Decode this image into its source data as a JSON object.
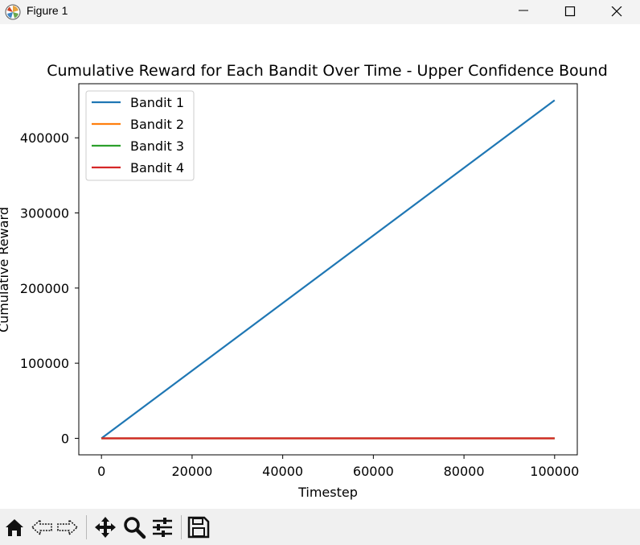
{
  "window": {
    "title": "Figure 1",
    "buttons": [
      "minimize",
      "maximize",
      "close"
    ]
  },
  "toolbar": {
    "icons": [
      "home-icon",
      "back-icon",
      "forward-icon",
      "pan-icon",
      "zoom-icon",
      "configure-icon",
      "save-icon"
    ]
  },
  "chart_data": {
    "type": "line",
    "title": "Cumulative Reward for Each Bandit Over Time - Upper Confidence Bound",
    "xlabel": "Timestep",
    "ylabel": "Cumulative Reward",
    "xlim": [
      -5000,
      105000
    ],
    "ylim": [
      -22000,
      472000
    ],
    "xticks": [
      0,
      20000,
      40000,
      60000,
      80000,
      100000
    ],
    "yticks": [
      0,
      100000,
      200000,
      300000,
      400000
    ],
    "grid": false,
    "legend": "upper left",
    "series": [
      {
        "name": "Bandit 1",
        "color": "#1f77b4",
        "x": [
          0,
          100000
        ],
        "y": [
          0,
          450000
        ]
      },
      {
        "name": "Bandit 2",
        "color": "#ff7f0e",
        "x": [
          0,
          100000
        ],
        "y": [
          0,
          0
        ]
      },
      {
        "name": "Bandit 3",
        "color": "#2ca02c",
        "x": [
          0,
          100000
        ],
        "y": [
          0,
          0
        ]
      },
      {
        "name": "Bandit 4",
        "color": "#d62728",
        "x": [
          0,
          100000
        ],
        "y": [
          0,
          0
        ]
      }
    ]
  }
}
